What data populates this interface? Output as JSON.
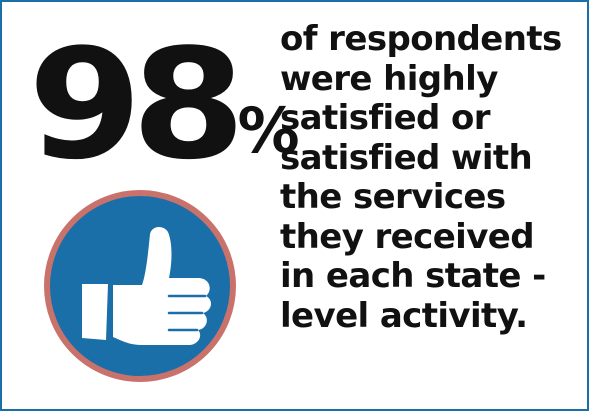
{
  "stat": {
    "number": "98",
    "percent_sign": "%"
  },
  "statement": {
    "text": "of respondents\nwere highly\nsatisfied or\nsatisfied with\nthe services\nthey received\nin each state -\nlevel activity."
  },
  "icon": {
    "name": "thumbs-up-icon",
    "circle_color": "#1a6fa8",
    "ring_color": "#c9726b",
    "glyph_color": "#ffffff"
  },
  "colors": {
    "border": "#1a6fa8",
    "text": "#111111",
    "background": "#ffffff"
  }
}
